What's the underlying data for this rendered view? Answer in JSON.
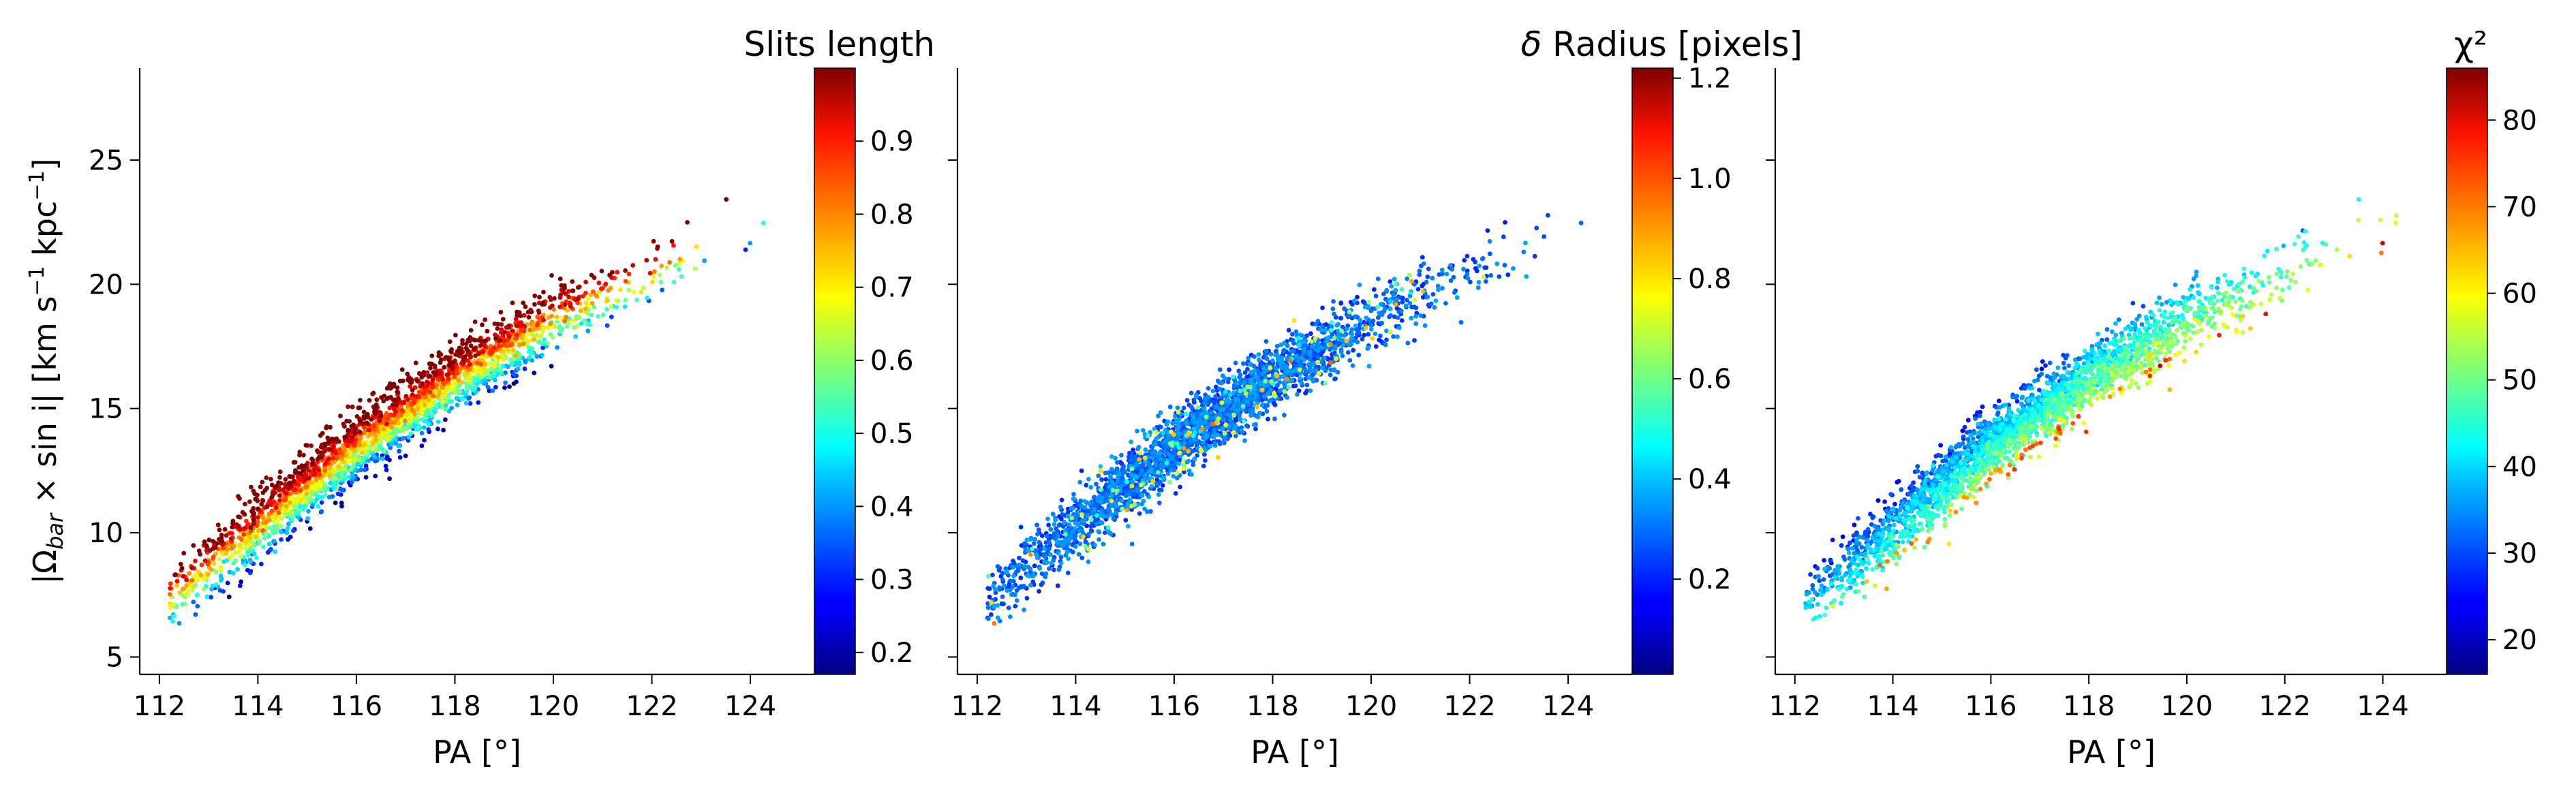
{
  "chart_data": [
    {
      "type": "scatter",
      "xlabel": "PA [°]",
      "ylabel": "|Ω",
      "ylabel_sub": "bar",
      "ylabel_rest": " × sin i|  [km s",
      "ylabel_unit2": " kpc",
      "ylabel_exp": "−1",
      "ylabel_close": "]",
      "xlim": [
        111.6,
        125.3
      ],
      "ylim": [
        4.3,
        28.7
      ],
      "xticks": [
        "112",
        "114",
        "116",
        "118",
        "120",
        "122",
        "124"
      ],
      "yticks": [
        "5",
        "10",
        "15",
        "20",
        "25"
      ],
      "colorbar": {
        "title": "Slits length",
        "colormap": "jet",
        "range": [
          0.17,
          1.0
        ],
        "ticks": [
          "0.2",
          "0.3",
          "0.4",
          "0.5",
          "0.6",
          "0.7",
          "0.8",
          "0.9"
        ]
      },
      "point_cloud": {
        "ridge": [
          [
            112.3,
            7.4
          ],
          [
            114,
            10.2
          ],
          [
            116,
            13.5
          ],
          [
            118,
            16.2
          ],
          [
            120,
            18.6
          ],
          [
            122,
            20.3
          ],
          [
            123.2,
            21.8
          ]
        ],
        "spread": 1.2,
        "count": 2600,
        "color_trend": "high values at the upper edge of the band, low values at the lower edge"
      }
    },
    {
      "type": "scatter",
      "xlabel": "PA [°]",
      "xlim": [
        111.6,
        125.3
      ],
      "ylim": [
        4.3,
        28.7
      ],
      "xticks": [
        "112",
        "114",
        "116",
        "118",
        "120",
        "122",
        "124"
      ],
      "colorbar": {
        "title_symbol": "δ",
        "title": " Radius [pixels]",
        "colormap": "jet",
        "range": [
          0.01,
          1.22
        ],
        "ticks": [
          "0.2",
          "0.4",
          "0.6",
          "0.8",
          "1.0",
          "1.2"
        ]
      },
      "point_cloud": {
        "ridge": [
          [
            112.3,
            7.4
          ],
          [
            114,
            10.2
          ],
          [
            116,
            13.5
          ],
          [
            118,
            16.2
          ],
          [
            120,
            18.6
          ],
          [
            122,
            20.3
          ],
          [
            123.2,
            21.8
          ]
        ],
        "spread": 1.2,
        "count": 2600,
        "color_trend": "mostly low values with a few scattered high values"
      }
    },
    {
      "type": "scatter",
      "xlabel": "PA [°]",
      "xlim": [
        111.6,
        125.3
      ],
      "ylim": [
        4.3,
        28.7
      ],
      "xticks": [
        "112",
        "114",
        "116",
        "118",
        "120",
        "122",
        "124"
      ],
      "colorbar": {
        "title": "χ²",
        "colormap": "jet",
        "range": [
          16,
          86
        ],
        "ticks": [
          "20",
          "30",
          "40",
          "50",
          "60",
          "70",
          "80"
        ]
      },
      "point_cloud": {
        "ridge": [
          [
            112.3,
            7.4
          ],
          [
            114,
            10.2
          ],
          [
            116,
            13.5
          ],
          [
            118,
            16.2
          ],
          [
            120,
            18.6
          ],
          [
            122,
            20.3
          ],
          [
            123.2,
            21.8
          ]
        ],
        "spread": 1.2,
        "count": 2600,
        "color_trend": "low values at the left end, moderate along the upper edge, higher values along the lower edge"
      }
    }
  ]
}
